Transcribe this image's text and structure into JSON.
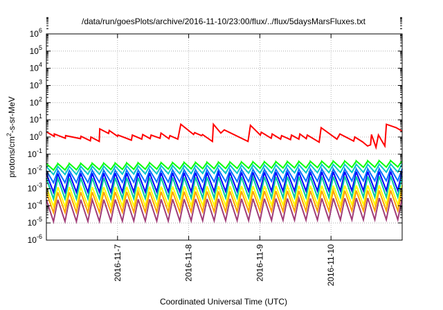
{
  "chart_data": {
    "type": "line",
    "title": "/data/run/goesPlots/archive/2016-11-10/23:00/flux/../flux/5daysMarsFluxes.txt",
    "xlabel": "Coordinated Universal Time (UTC)",
    "ylabel": {
      "prefix": "protons/cm",
      "sup": "2",
      "suffix": "-s-sr-MeV"
    },
    "yscale": "log",
    "ylim": [
      1e-06,
      1000000.0
    ],
    "xlim": [
      "2016-11-06 00:00",
      "2016-11-11 00:00"
    ],
    "grid": true,
    "x_ticks": [
      "2016-11-7",
      "2016-11-8",
      "2016-11-9",
      "2016-11-10"
    ],
    "y_ticks": [
      {
        "base": "10",
        "exp": "6",
        "value": 1000000.0
      },
      {
        "base": "10",
        "exp": "5",
        "value": 100000.0
      },
      {
        "base": "10",
        "exp": "4",
        "value": 10000.0
      },
      {
        "base": "10",
        "exp": "3",
        "value": 1000.0
      },
      {
        "base": "10",
        "exp": "2",
        "value": 100.0
      },
      {
        "base": "10",
        "exp": "1",
        "value": 10.0
      },
      {
        "base": "10",
        "exp": "0",
        "value": 1.0
      },
      {
        "base": "10",
        "exp": "-1",
        "value": 0.1
      },
      {
        "base": "10",
        "exp": "-2",
        "value": 0.01
      },
      {
        "base": "10",
        "exp": "-3",
        "value": 0.001
      },
      {
        "base": "10",
        "exp": "-4",
        "value": 0.0001
      },
      {
        "base": "10",
        "exp": "-5",
        "value": 1e-05
      },
      {
        "base": "10",
        "exp": "-6",
        "value": 1e-06
      }
    ],
    "series": [
      {
        "color": "#ff0000",
        "x": [
          "2016-11-06 00:00",
          "2016-11-06 02:38",
          "2016-11-06 02:40",
          "2016-11-06 06:24",
          "2016-11-06 06:30",
          "2016-11-06 11:30",
          "2016-11-06 11:40",
          "2016-11-06 14:50",
          "2016-11-06 15:00",
          "2016-11-06 17:50",
          "2016-11-06 18:00",
          "2016-11-06 21:00",
          "2016-11-06 21:12",
          "2016-11-07 00:00",
          "2016-11-07 00:10",
          "2016-11-07 04:40",
          "2016-11-07 05:00",
          "2016-11-07 08:10",
          "2016-11-07 08:30",
          "2016-11-07 11:00",
          "2016-11-07 11:20",
          "2016-11-07 14:20",
          "2016-11-07 14:40",
          "2016-11-07 17:20",
          "2016-11-07 17:40",
          "2016-11-07 20:20",
          "2016-11-07 21:20",
          "2016-11-08 01:40",
          "2016-11-08 02:00",
          "2016-11-08 04:20",
          "2016-11-08 04:40",
          "2016-11-08 08:00",
          "2016-11-08 08:20",
          "2016-11-08 10:50",
          "2016-11-08 12:00",
          "2016-11-08 20:00",
          "2016-11-08 20:50",
          "2016-11-09 00:10",
          "2016-11-09 00:30",
          "2016-11-09 03:50",
          "2016-11-09 04:10",
          "2016-11-09 07:00",
          "2016-11-09 07:20",
          "2016-11-09 10:20",
          "2016-11-09 10:40",
          "2016-11-09 13:10",
          "2016-11-09 13:30",
          "2016-11-09 15:40",
          "2016-11-09 16:00",
          "2016-11-09 20:00",
          "2016-11-09 20:40",
          "2016-11-10 02:00",
          "2016-11-10 03:00",
          "2016-11-10 07:40",
          "2016-11-10 08:00",
          "2016-11-10 10:40",
          "2016-11-10 12:20",
          "2016-11-10 13:20",
          "2016-11-10 13:40",
          "2016-11-10 15:10",
          "2016-11-10 16:00",
          "2016-11-10 18:10",
          "2016-11-10 18:40",
          "2016-11-10 22:00",
          "2016-11-10 23:59"
        ],
        "y": [
          2.0,
          1.1,
          1.5,
          0.85,
          1.2,
          0.8,
          1.1,
          0.6,
          1.0,
          0.55,
          3.0,
          1.6,
          2.4,
          1.1,
          1.3,
          0.65,
          1.3,
          0.75,
          1.4,
          0.8,
          1.3,
          0.85,
          1.7,
          0.8,
          1.2,
          0.75,
          5.5,
          1.4,
          1.8,
          1.2,
          1.4,
          0.55,
          5.5,
          1.7,
          2.6,
          0.55,
          4.8,
          1.3,
          1.9,
          0.85,
          1.5,
          0.75,
          1.2,
          0.7,
          1.3,
          0.75,
          1.5,
          0.8,
          1.3,
          0.5,
          3.5,
          0.75,
          1.5,
          0.58,
          1.0,
          0.52,
          0.3,
          0.35,
          1.4,
          0.25,
          1.3,
          0.3,
          5.5,
          3.5,
          2.2
        ]
      },
      {
        "color": "#00ff00",
        "base": 0.012,
        "peak": 0.028,
        "cycles": 31,
        "growth": 1.5
      },
      {
        "color": "#00c8c8",
        "base": 0.0065,
        "peak": 0.019,
        "cycles": 31,
        "growth": 1.4
      },
      {
        "color": "#0070ff",
        "base": 0.0022,
        "peak": 0.011,
        "cycles": 31,
        "growth": 1.3
      },
      {
        "color": "#0000ff",
        "base": 0.0006,
        "peak": 0.0075,
        "cycles": 31,
        "growth": 1.3
      },
      {
        "color": "#00c8a0",
        "base": 0.00025,
        "peak": 0.004,
        "cycles": 31,
        "growth": 1.3
      },
      {
        "color": "#ffff00",
        "base": 9e-05,
        "peak": 0.0012,
        "cycles": 31,
        "growth": 1.3
      },
      {
        "color": "#ffa000",
        "base": 4e-05,
        "peak": 0.0006,
        "cycles": 31,
        "growth": 1.3
      },
      {
        "color": "#a03c78",
        "base": 1.2e-05,
        "peak": 0.00022,
        "cycles": 31,
        "growth": 1.3
      }
    ]
  }
}
